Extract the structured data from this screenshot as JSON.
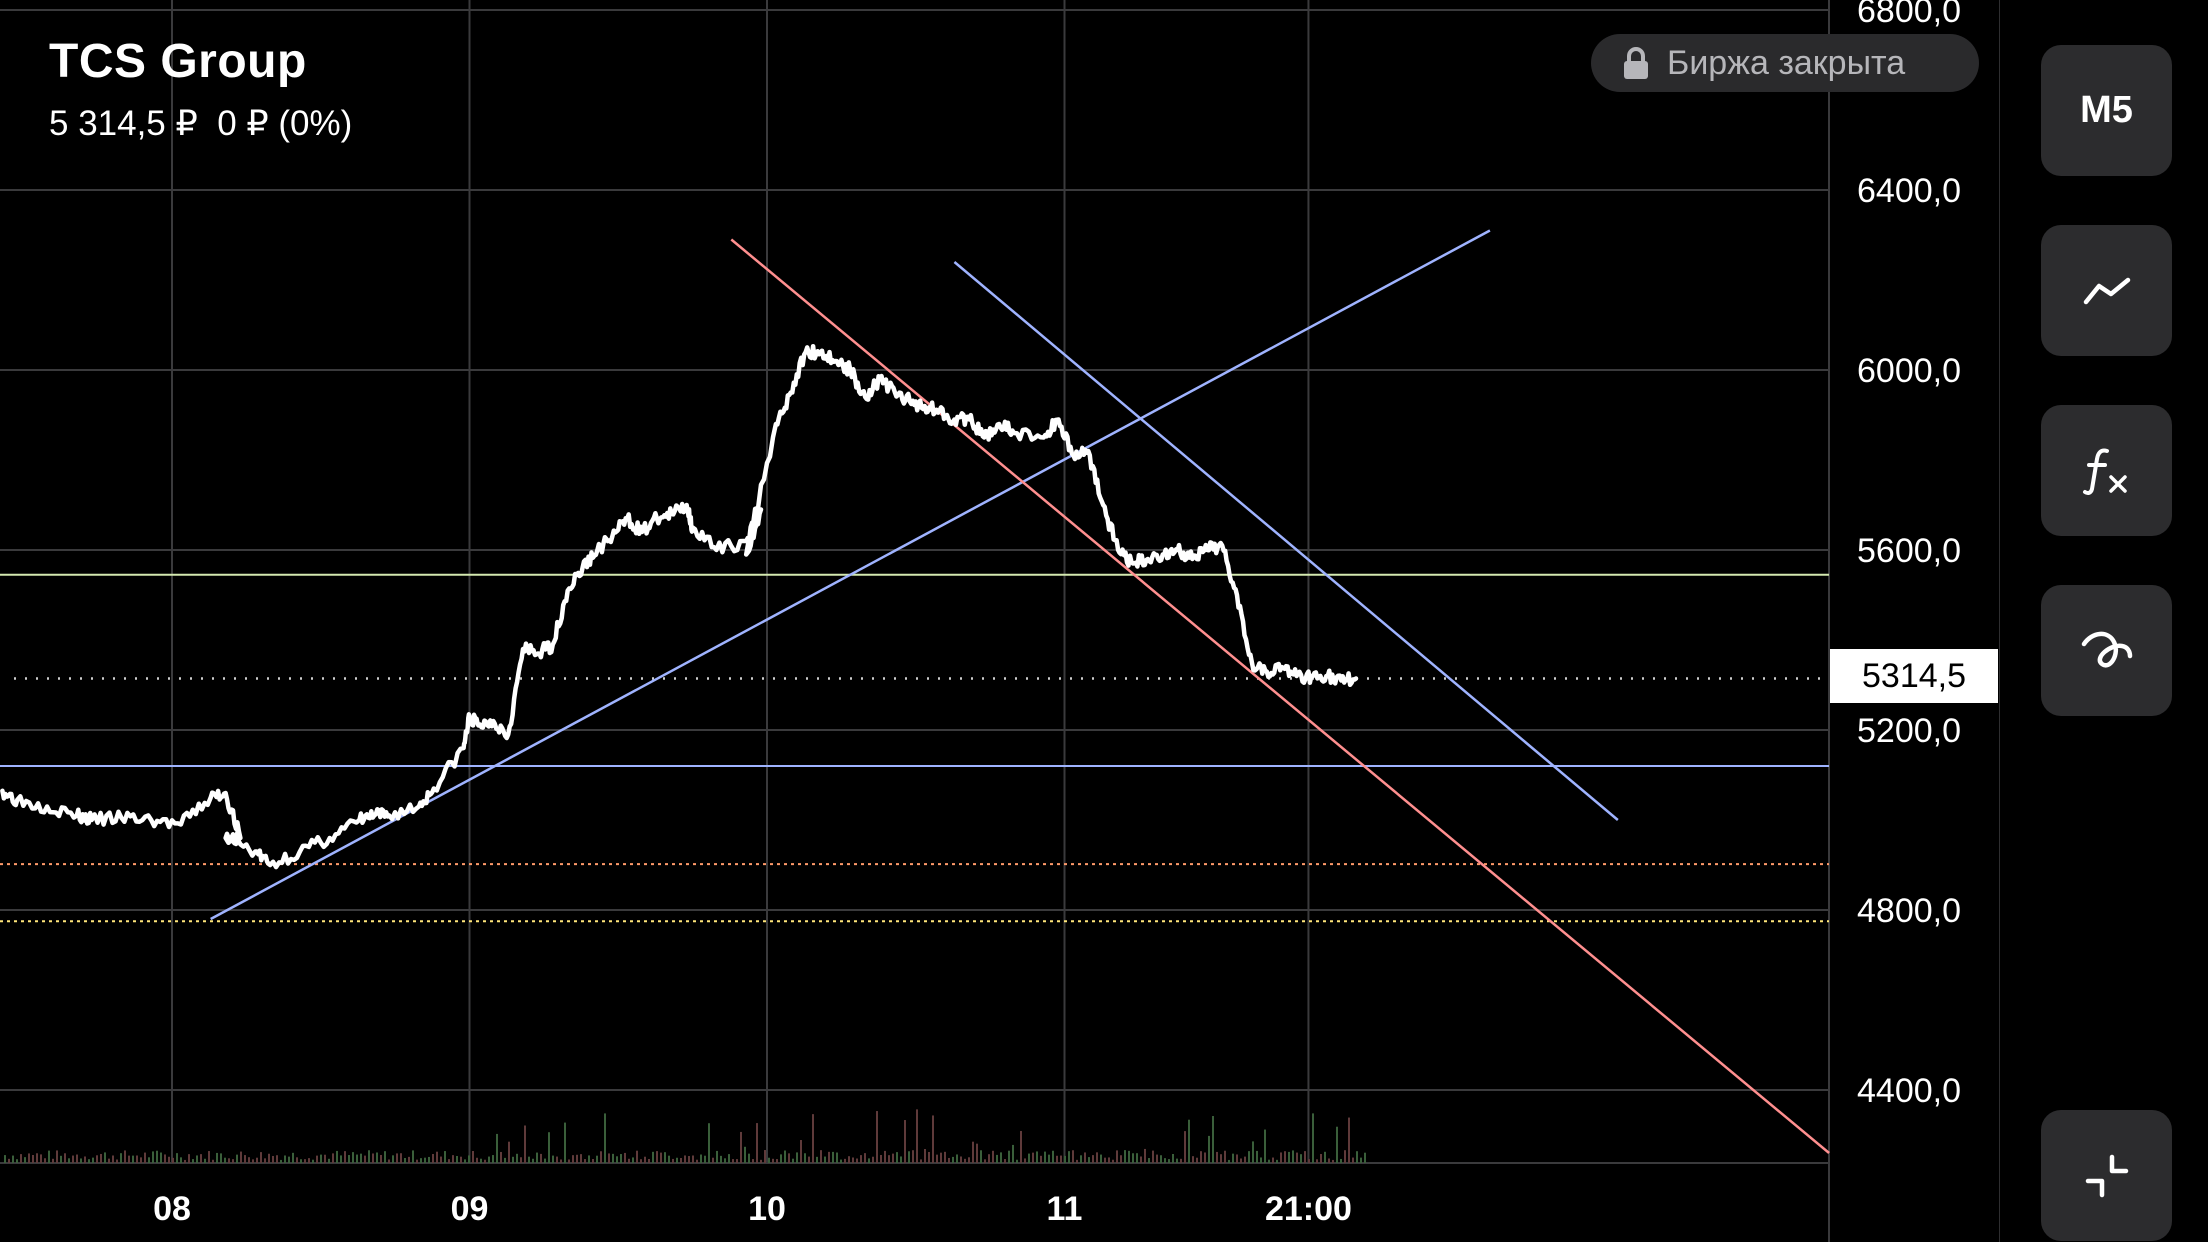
{
  "header": {
    "instrument": "TCS Group",
    "quote": "5 314,5 ₽  0 ₽ (0%)"
  },
  "status_badge": {
    "text": "Биржа закрыта",
    "icon": "lock-icon"
  },
  "toolbar": {
    "interval_label": "M5",
    "buttons": [
      {
        "name": "interval-button",
        "icon": "",
        "label": "M5"
      },
      {
        "name": "chart-type-button",
        "icon": "line-chart-icon"
      },
      {
        "name": "indicators-button",
        "icon": "function-icon"
      },
      {
        "name": "drawing-tools-button",
        "icon": "curve-icon"
      },
      {
        "name": "collapse-button",
        "icon": "collapse-icon"
      }
    ]
  },
  "chart_data": {
    "type": "line",
    "x_ticks": [
      {
        "label": "08",
        "t": 0.07
      },
      {
        "label": "09",
        "t": 1.07
      },
      {
        "label": "10",
        "t": 2.07
      },
      {
        "label": "11",
        "t": 3.07
      },
      {
        "label": "21:00",
        "t": 3.89
      }
    ],
    "y_ticks": [
      "4400,0",
      "4800,0",
      "5200,0",
      "5600,0",
      "6000,0",
      "6400,0",
      "6800,0"
    ],
    "y_tick_values": [
      4400,
      4800,
      5200,
      5600,
      6000,
      6400,
      6800
    ],
    "xlim": [
      -0.5,
      5.64
    ],
    "ylim": [
      4225,
      6815
    ],
    "grid": true,
    "last_price": 5314.5,
    "last_price_label": "5314,5",
    "series": [
      {
        "x": [
          -0.5,
          -0.45,
          -0.35,
          -0.25,
          -0.2,
          -0.1,
          0,
          0.1,
          0.2,
          0.25,
          0.3,
          0.25,
          0.35,
          0.4,
          0.5,
          0.6,
          0.7,
          0.75,
          0.8,
          0.9,
          0.95,
          1.05,
          1.07,
          1.1,
          1.15,
          1.2,
          1.25,
          1.3,
          1.35,
          1.4,
          1.45,
          1.5,
          1.55,
          1.6,
          1.65,
          1.7,
          1.75,
          1.8,
          1.82,
          1.9,
          2.0,
          2.05,
          2.0,
          2.1,
          2.15,
          2.2,
          2.25,
          2.3,
          2.35,
          2.4,
          2.45,
          2.5,
          2.55,
          2.6,
          2.65,
          2.7,
          2.75,
          2.8,
          2.85,
          2.9,
          3.0,
          3.05,
          3.1,
          3.15,
          3.2,
          3.25,
          3.3,
          3.35,
          3.4,
          3.45,
          3.5,
          3.55,
          3.6,
          3.65,
          3.7,
          3.75,
          3.8,
          3.85,
          3.9,
          3.95,
          4.0,
          4.05
        ],
        "y": [
          5065,
          5045,
          5030,
          5010,
          5000,
          5005,
          5000,
          4990,
          5050,
          5060,
          4960,
          4960,
          4930,
          4900,
          4930,
          4960,
          5000,
          5010,
          5010,
          5030,
          5070,
          5160,
          5230,
          5210,
          5220,
          5190,
          5380,
          5370,
          5390,
          5510,
          5560,
          5600,
          5630,
          5670,
          5640,
          5670,
          5680,
          5700,
          5650,
          5600,
          5620,
          5690,
          5590,
          5880,
          5950,
          6040,
          6040,
          6020,
          6000,
          5940,
          5980,
          5950,
          5930,
          5920,
          5910,
          5890,
          5890,
          5850,
          5880,
          5860,
          5850,
          5890,
          5810,
          5820,
          5700,
          5600,
          5570,
          5580,
          5590,
          5600,
          5580,
          5600,
          5610,
          5500,
          5350,
          5330,
          5340,
          5320,
          5320,
          5320,
          5310,
          5314.5
        ]
      }
    ],
    "horizontal_levels": [
      {
        "value": 5545,
        "color": "#d4e9b0",
        "style": "solid"
      },
      {
        "value": 5120,
        "color": "#9fb3ff",
        "style": "solid"
      },
      {
        "value": 4902,
        "color": "#ff9a6a",
        "style": "dotted"
      },
      {
        "value": 4775,
        "color": "#ffe67a",
        "style": "dotted"
      }
    ],
    "trend_lines": [
      {
        "color": "#9fb3ff",
        "from": [
          0.2,
          4780
        ],
        "to": [
          4.5,
          6310
        ]
      },
      {
        "color": "#9fb3ff",
        "from": [
          2.7,
          6240
        ],
        "to": [
          4.93,
          5000
        ]
      },
      {
        "color": "#ff8f8f",
        "from": [
          1.95,
          6290
        ],
        "to": [
          5.64,
          4260
        ]
      }
    ]
  }
}
